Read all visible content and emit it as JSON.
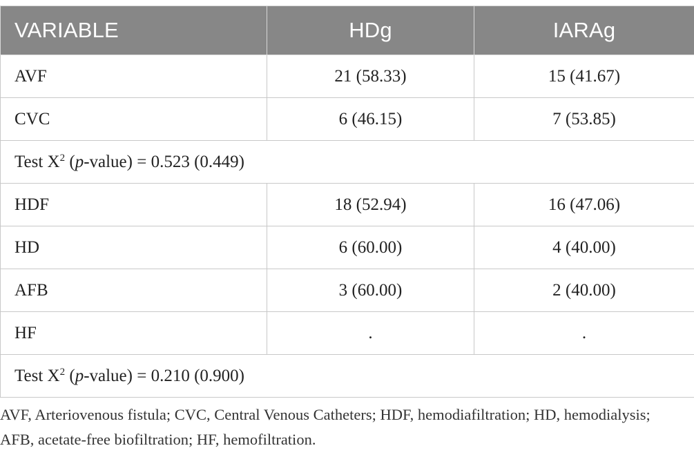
{
  "table": {
    "headers": [
      "VARIABLE",
      "HDg",
      "IARAg"
    ],
    "rows": [
      {
        "label": "AVF",
        "hdg": "21 (58.33)",
        "iarag": "15 (41.67)"
      },
      {
        "label": "CVC",
        "hdg": "6 (46.15)",
        "iarag": "7 (53.85)"
      }
    ],
    "test1": {
      "prefix": "Test X",
      "sup": "2",
      "open": " (",
      "p": "p",
      "suffix": "-value) = 0.523 (0.449)"
    },
    "rows2": [
      {
        "label": "HDF",
        "hdg": "18 (52.94)",
        "iarag": "16 (47.06)"
      },
      {
        "label": "HD",
        "hdg": "6 (60.00)",
        "iarag": "4 (40.00)"
      },
      {
        "label": "AFB",
        "hdg": "3 (60.00)",
        "iarag": "2 (40.00)"
      },
      {
        "label": "HF",
        "hdg": ".",
        "iarag": "."
      }
    ],
    "test2": {
      "prefix": "Test X",
      "sup": "2",
      "open": " (",
      "p": "p",
      "suffix": "-value) = 0.210 (0.900)"
    }
  },
  "footnote": "AVF, Arteriovenous fistula; CVC, Central Venous Catheters; HDF, hemodiafiltration; HD, hemodialysis; AFB, acetate-free biofiltration; HF, hemofiltration."
}
